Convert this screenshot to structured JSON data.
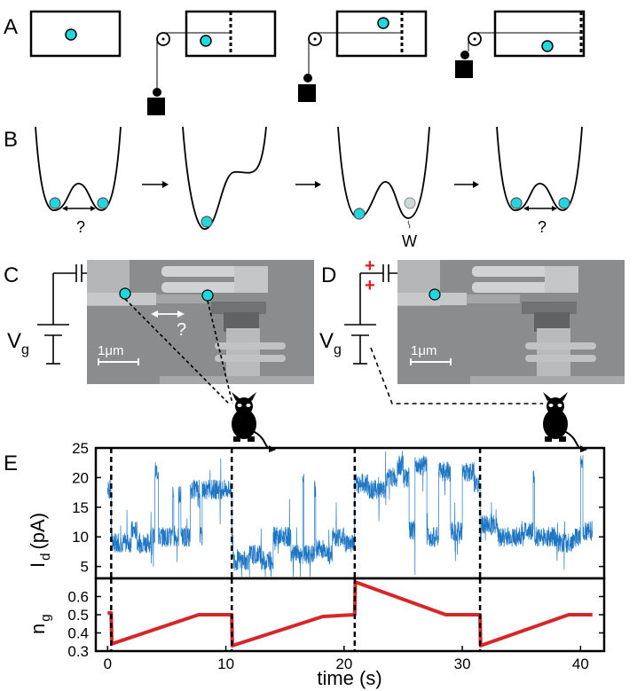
{
  "panels": {
    "a": {
      "label": "A"
    },
    "b": {
      "label": "B",
      "question_left": "?",
      "question_right": "?",
      "work_label": "W"
    },
    "c": {
      "label": "C",
      "gate_label": "V",
      "gate_subscript": "g",
      "question": "?",
      "scale_bar": "1μm"
    },
    "d": {
      "label": "D",
      "gate_label": "V",
      "gate_subscript": "g",
      "plus": "+",
      "scale_bar": "1μm"
    },
    "e": {
      "label": "E"
    }
  },
  "colors": {
    "particle": "#1fd7dc",
    "particle_faded": "#9bbcc0",
    "current_trace": "#1f77c4",
    "gate_trace": "#d62728",
    "plus_sign": "#e31a1c",
    "sem_background": "#8a8c8e"
  },
  "chart_data": [
    {
      "type": "line",
      "ylabel": "I",
      "ylabel_subscript": "d",
      "ylabel_unit": "(pA)",
      "ylim": [
        3,
        25
      ],
      "yticks": [
        5,
        10,
        15,
        20,
        25
      ],
      "xlim": [
        -1,
        42
      ],
      "markers": [
        0.3,
        10.5,
        20.9,
        31.5
      ],
      "series": [
        {
          "values": [
            [
              0.0,
              18
            ],
            [
              0.3,
              10
            ],
            [
              0.4,
              9
            ],
            [
              2.0,
              11
            ],
            [
              2.5,
              9
            ],
            [
              3.6,
              10
            ],
            [
              4.0,
              21
            ],
            [
              4.3,
              10
            ],
            [
              5.5,
              17
            ],
            [
              5.6,
              10
            ],
            [
              6.0,
              17
            ],
            [
              6.2,
              10
            ],
            [
              7.0,
              18
            ],
            [
              7.8,
              10
            ],
            [
              8.0,
              18
            ],
            [
              9.9,
              18
            ],
            [
              10.5,
              10
            ],
            [
              10.6,
              6
            ],
            [
              12.0,
              7
            ],
            [
              13.0,
              6
            ],
            [
              14.0,
              10
            ],
            [
              15.5,
              7
            ],
            [
              16.5,
              19
            ],
            [
              16.6,
              7
            ],
            [
              17.5,
              18
            ],
            [
              17.6,
              8
            ],
            [
              18.5,
              7
            ],
            [
              19.0,
              10
            ],
            [
              20.0,
              9
            ],
            [
              20.9,
              19
            ],
            [
              21.0,
              19
            ],
            [
              22.0,
              18
            ],
            [
              23.5,
              20
            ],
            [
              24.5,
              22
            ],
            [
              25.0,
              20
            ],
            [
              25.5,
              11
            ],
            [
              26.0,
              22
            ],
            [
              27.0,
              10
            ],
            [
              28.0,
              21
            ],
            [
              29.0,
              11
            ],
            [
              30.0,
              21
            ],
            [
              31.0,
              19
            ],
            [
              31.5,
              10
            ],
            [
              31.6,
              12
            ],
            [
              33.0,
              10
            ],
            [
              35.0,
              11
            ],
            [
              36.0,
              20
            ],
            [
              36.1,
              10
            ],
            [
              38.0,
              9
            ],
            [
              39.5,
              10
            ],
            [
              40.0,
              23
            ],
            [
              40.2,
              11
            ],
            [
              41.0,
              10
            ]
          ]
        }
      ]
    },
    {
      "type": "line",
      "ylabel": "n",
      "ylabel_subscript": "g",
      "xlabel": "time (s)",
      "ylim": [
        0.3,
        0.7
      ],
      "yticks": [
        0.3,
        0.4,
        0.5,
        0.6
      ],
      "xlim": [
        -1,
        42
      ],
      "xticks": [
        0,
        10,
        20,
        30,
        40
      ],
      "markers": [
        0.3,
        10.5,
        20.9,
        31.5
      ],
      "series": [
        {
          "values": [
            [
              0.0,
              0.51
            ],
            [
              0.3,
              0.51
            ],
            [
              0.35,
              0.34
            ],
            [
              7.7,
              0.5
            ],
            [
              10.5,
              0.5
            ],
            [
              10.55,
              0.33
            ],
            [
              18.2,
              0.49
            ],
            [
              20.9,
              0.5
            ],
            [
              20.95,
              0.68
            ],
            [
              28.6,
              0.5
            ],
            [
              31.5,
              0.5
            ],
            [
              31.55,
              0.33
            ],
            [
              39.0,
              0.5
            ],
            [
              41.0,
              0.5
            ]
          ]
        }
      ]
    }
  ]
}
